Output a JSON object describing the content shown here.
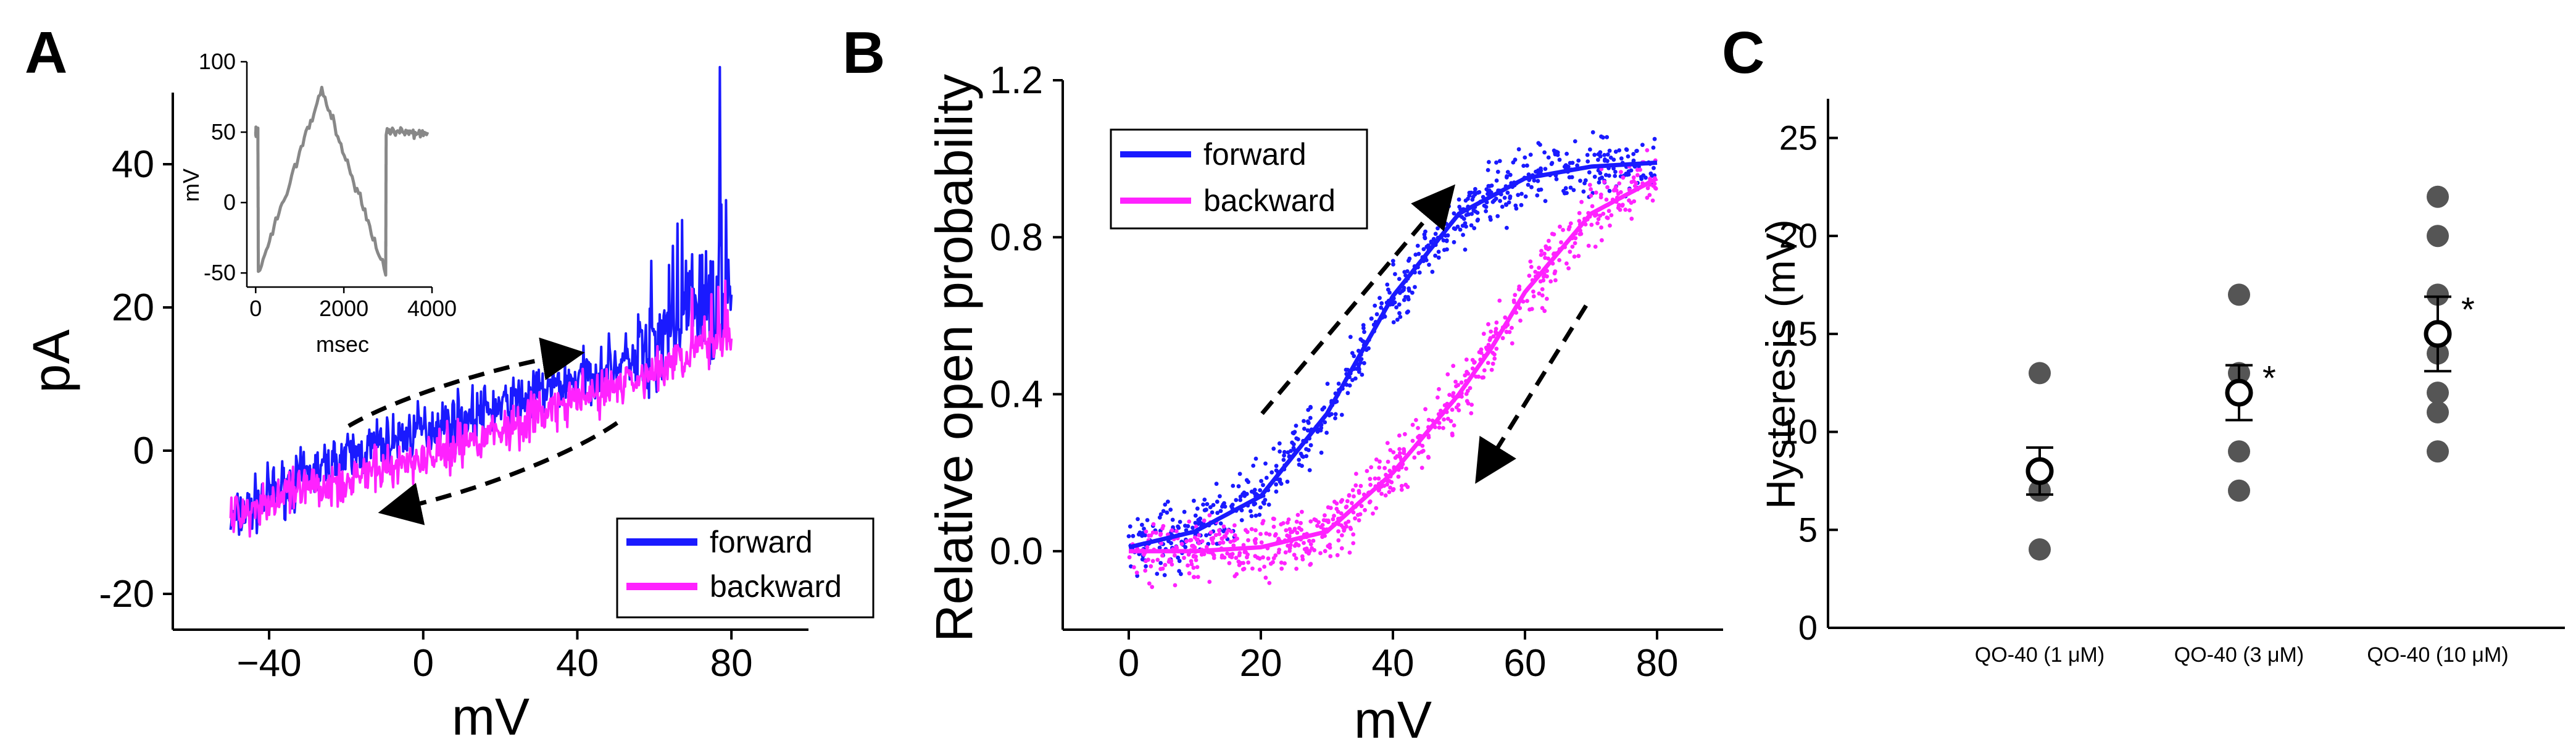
{
  "panels": [
    {
      "letter": "A"
    },
    {
      "letter": "B"
    },
    {
      "letter": "C"
    }
  ],
  "chart_data": [
    {
      "panel": "A",
      "type": "line",
      "xlabel": "mV",
      "ylabel": "pA",
      "xlim": [
        -65,
        100
      ],
      "ylim": [
        -25,
        50
      ],
      "xticks": [
        -40,
        0,
        40,
        80
      ],
      "xtick_labels": [
        "−40",
        "0",
        "40",
        "80"
      ],
      "yticks": [
        -20,
        0,
        20,
        40
      ],
      "ytick_labels": [
        "-20",
        "0",
        "20",
        "40"
      ],
      "grid": false,
      "legend_position": "bottom-right",
      "colors": {
        "forward": "#1a1aff",
        "backward": "#ff22ff"
      },
      "series": [
        {
          "name": "forward",
          "x": [
            -50,
            -40,
            -20,
            0,
            20,
            40,
            60,
            70,
            80
          ],
          "y": [
            -10,
            -6,
            -1,
            3,
            6,
            10,
            14,
            20,
            20
          ]
        },
        {
          "name": "backward",
          "x": [
            80,
            70,
            60,
            40,
            20,
            0,
            -20,
            -40,
            -50
          ],
          "y": [
            17,
            14,
            11,
            7,
            3,
            -1,
            -4,
            -7,
            -9
          ]
        }
      ],
      "inset": {
        "type": "line",
        "xlabel": "msec",
        "ylabel": "mV",
        "xlim": [
          -200,
          4000
        ],
        "ylim": [
          -60,
          100
        ],
        "xticks": [
          0,
          2000,
          4000
        ],
        "xtick_labels": [
          "0",
          "2000",
          "4000"
        ],
        "yticks": [
          -50,
          0,
          50,
          100
        ],
        "ytick_labels": [
          "-50",
          "0",
          "50",
          "100"
        ],
        "color": "#888888",
        "x": [
          0,
          50,
          60,
          1500,
          2950,
          2960,
          3900
        ],
        "y": [
          50,
          50,
          -50,
          80,
          -50,
          50,
          50
        ]
      }
    },
    {
      "panel": "B",
      "type": "scatter",
      "xlabel": "mV",
      "ylabel": "Relative open probability",
      "xlim": [
        -10,
        90
      ],
      "ylim": [
        -0.2,
        1.2
      ],
      "xticks": [
        0,
        20,
        40,
        60,
        80
      ],
      "xtick_labels": [
        "0",
        "20",
        "40",
        "60",
        "80"
      ],
      "yticks": [
        0.0,
        0.4,
        0.8,
        1.2
      ],
      "ytick_labels": [
        "0.0",
        "0.4",
        "0.8",
        "1.2"
      ],
      "grid": false,
      "legend_position": "top-left",
      "colors": {
        "forward": "#1a1aff",
        "backward": "#ff22ff"
      },
      "series": [
        {
          "name": "forward",
          "fit": "boltzmann",
          "x": [
            0,
            10,
            20,
            30,
            35,
            40,
            50,
            60,
            70,
            80
          ],
          "y": [
            0.01,
            0.05,
            0.14,
            0.35,
            0.5,
            0.65,
            0.86,
            0.95,
            0.98,
            0.99
          ]
        },
        {
          "name": "backward",
          "fit": "boltzmann",
          "x": [
            0,
            10,
            20,
            30,
            40,
            50,
            55,
            60,
            70,
            80
          ],
          "y": [
            0.0,
            0.0,
            0.01,
            0.05,
            0.2,
            0.4,
            0.52,
            0.66,
            0.86,
            0.95
          ]
        }
      ]
    },
    {
      "panel": "C",
      "type": "scatter",
      "xlabel": "",
      "ylabel": "Hysteresis (mV)",
      "ylim": [
        0,
        27
      ],
      "yticks": [
        0,
        5,
        10,
        15,
        20,
        25
      ],
      "ytick_labels": [
        "0",
        "5",
        "10",
        "15",
        "20",
        "25"
      ],
      "categories": [
        "QO-40 (1 μM)",
        "QO-40 (3 μM)",
        "QO-40 (10 μM)"
      ],
      "grid": false,
      "colors": {
        "points": "#555555"
      },
      "points": [
        [
          4,
          7,
          8,
          13
        ],
        [
          7,
          9,
          12,
          13,
          17
        ],
        [
          9,
          11,
          12,
          14,
          17,
          20,
          22
        ]
      ],
      "means": [
        8,
        12,
        15
      ],
      "errors": [
        1.2,
        1.4,
        1.9
      ],
      "significance": [
        "",
        "*",
        "*"
      ]
    }
  ]
}
